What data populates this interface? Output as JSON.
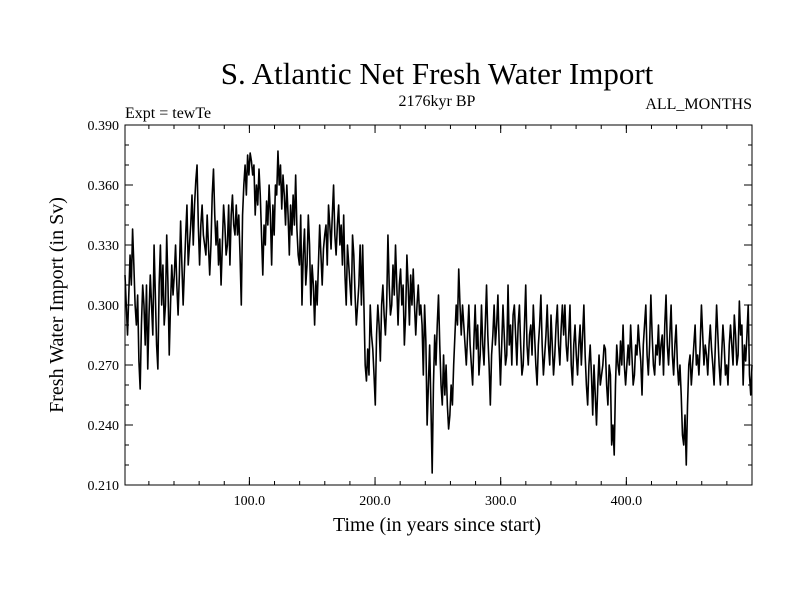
{
  "chart_data": {
    "type": "line",
    "title": "S. Atlantic Net Fresh Water Import",
    "subtitle_left": "Expt = tewTe",
    "subtitle_center": "2176kyr BP",
    "subtitle_right": "ALL_MONTHS",
    "xlabel": "Time (in years since start)",
    "ylabel": "Fresh Water Import (in Sv)",
    "xlim": [
      1,
      500
    ],
    "ylim": [
      0.21,
      0.39
    ],
    "x_ticks": [
      100,
      200,
      300,
      400
    ],
    "x_tick_labels": [
      "100.0",
      "200.0",
      "300.0",
      "400.0"
    ],
    "y_ticks": [
      0.21,
      0.24,
      0.27,
      0.3,
      0.33,
      0.36,
      0.39
    ],
    "y_tick_labels": [
      "0.210",
      "0.240",
      "0.270",
      "0.300",
      "0.330",
      "0.360",
      "0.390"
    ],
    "grid": false,
    "series": [
      {
        "name": "Fresh Water Import",
        "x_start": 1,
        "x_step": 1,
        "values": [
          0.315,
          0.3,
          0.285,
          0.305,
          0.325,
          0.31,
          0.338,
          0.32,
          0.3,
          0.29,
          0.305,
          0.272,
          0.258,
          0.29,
          0.31,
          0.3,
          0.28,
          0.31,
          0.268,
          0.295,
          0.315,
          0.3,
          0.285,
          0.33,
          0.305,
          0.28,
          0.268,
          0.31,
          0.33,
          0.3,
          0.32,
          0.29,
          0.3,
          0.335,
          0.31,
          0.275,
          0.3,
          0.32,
          0.305,
          0.315,
          0.33,
          0.31,
          0.295,
          0.315,
          0.342,
          0.32,
          0.3,
          0.318,
          0.335,
          0.35,
          0.32,
          0.33,
          0.34,
          0.355,
          0.33,
          0.35,
          0.362,
          0.37,
          0.34,
          0.32,
          0.34,
          0.35,
          0.335,
          0.33,
          0.325,
          0.345,
          0.33,
          0.315,
          0.33,
          0.355,
          0.368,
          0.345,
          0.33,
          0.342,
          0.32,
          0.333,
          0.31,
          0.33,
          0.35,
          0.34,
          0.325,
          0.33,
          0.35,
          0.32,
          0.345,
          0.355,
          0.34,
          0.335,
          0.35,
          0.335,
          0.345,
          0.325,
          0.3,
          0.345,
          0.36,
          0.37,
          0.355,
          0.375,
          0.365,
          0.376,
          0.372,
          0.365,
          0.37,
          0.345,
          0.36,
          0.35,
          0.368,
          0.355,
          0.335,
          0.315,
          0.34,
          0.33,
          0.352,
          0.34,
          0.36,
          0.345,
          0.32,
          0.35,
          0.335,
          0.36,
          0.355,
          0.377,
          0.36,
          0.37,
          0.348,
          0.365,
          0.355,
          0.34,
          0.36,
          0.345,
          0.325,
          0.35,
          0.335,
          0.355,
          0.34,
          0.365,
          0.338,
          0.325,
          0.32,
          0.345,
          0.3,
          0.325,
          0.338,
          0.31,
          0.32,
          0.345,
          0.33,
          0.3,
          0.32,
          0.31,
          0.29,
          0.312,
          0.3,
          0.32,
          0.34,
          0.325,
          0.31,
          0.328,
          0.335,
          0.34,
          0.32,
          0.35,
          0.34,
          0.328,
          0.345,
          0.36,
          0.335,
          0.325,
          0.34,
          0.35,
          0.33,
          0.34,
          0.32,
          0.345,
          0.315,
          0.3,
          0.33,
          0.32,
          0.31,
          0.3,
          0.335,
          0.325,
          0.305,
          0.29,
          0.3,
          0.31,
          0.33,
          0.3,
          0.33,
          0.3,
          0.27,
          0.262,
          0.278,
          0.265,
          0.3,
          0.285,
          0.278,
          0.265,
          0.25,
          0.285,
          0.3,
          0.29,
          0.272,
          0.3,
          0.31,
          0.295,
          0.285,
          0.3,
          0.335,
          0.31,
          0.295,
          0.3,
          0.32,
          0.305,
          0.33,
          0.31,
          0.29,
          0.31,
          0.318,
          0.3,
          0.31,
          0.28,
          0.295,
          0.325,
          0.31,
          0.29,
          0.315,
          0.3,
          0.318,
          0.3,
          0.285,
          0.3,
          0.31,
          0.295,
          0.3,
          0.29,
          0.265,
          0.3,
          0.282,
          0.24,
          0.26,
          0.28,
          0.25,
          0.216,
          0.26,
          0.285,
          0.27,
          0.29,
          0.305,
          0.28,
          0.26,
          0.25,
          0.275,
          0.255,
          0.27,
          0.25,
          0.238,
          0.245,
          0.26,
          0.25,
          0.27,
          0.285,
          0.3,
          0.29,
          0.318,
          0.3,
          0.285,
          0.3,
          0.29,
          0.28,
          0.27,
          0.285,
          0.3,
          0.28,
          0.27,
          0.26,
          0.282,
          0.3,
          0.278,
          0.29,
          0.265,
          0.275,
          0.3,
          0.28,
          0.27,
          0.29,
          0.31,
          0.285,
          0.27,
          0.25,
          0.275,
          0.285,
          0.3,
          0.28,
          0.29,
          0.305,
          0.28,
          0.26,
          0.28,
          0.3,
          0.285,
          0.27,
          0.275,
          0.31,
          0.28,
          0.29,
          0.27,
          0.295,
          0.3,
          0.285,
          0.27,
          0.29,
          0.3,
          0.28,
          0.265,
          0.27,
          0.29,
          0.31,
          0.28,
          0.27,
          0.285,
          0.29,
          0.275,
          0.3,
          0.285,
          0.27,
          0.26,
          0.28,
          0.29,
          0.305,
          0.28,
          0.265,
          0.275,
          0.285,
          0.3,
          0.28,
          0.27,
          0.295,
          0.28,
          0.265,
          0.275,
          0.29,
          0.3,
          0.28,
          0.27,
          0.288,
          0.3,
          0.285,
          0.3,
          0.28,
          0.272,
          0.285,
          0.3,
          0.27,
          0.26,
          0.28,
          0.29,
          0.275,
          0.265,
          0.28,
          0.29,
          0.27,
          0.285,
          0.3,
          0.275,
          0.26,
          0.25,
          0.27,
          0.28,
          0.265,
          0.245,
          0.27,
          0.255,
          0.24,
          0.26,
          0.275,
          0.26,
          0.265,
          0.27,
          0.28,
          0.278,
          0.26,
          0.25,
          0.27,
          0.265,
          0.23,
          0.24,
          0.225,
          0.26,
          0.28,
          0.27,
          0.265,
          0.282,
          0.27,
          0.29,
          0.27,
          0.26,
          0.27,
          0.28,
          0.27,
          0.29,
          0.275,
          0.26,
          0.265,
          0.28,
          0.275,
          0.29,
          0.28,
          0.272,
          0.255,
          0.28,
          0.29,
          0.3,
          0.275,
          0.265,
          0.28,
          0.305,
          0.285,
          0.27,
          0.265,
          0.28,
          0.275,
          0.29,
          0.27,
          0.28,
          0.285,
          0.265,
          0.29,
          0.305,
          0.28,
          0.27,
          0.285,
          0.3,
          0.275,
          0.265,
          0.28,
          0.29,
          0.27,
          0.26,
          0.27,
          0.255,
          0.235,
          0.23,
          0.245,
          0.22,
          0.25,
          0.27,
          0.275,
          0.26,
          0.27,
          0.28,
          0.29,
          0.27,
          0.275,
          0.265,
          0.28,
          0.3,
          0.285,
          0.27,
          0.28,
          0.275,
          0.265,
          0.28,
          0.29,
          0.278,
          0.27,
          0.26,
          0.28,
          0.3,
          0.285,
          0.27,
          0.26,
          0.275,
          0.29,
          0.28,
          0.265,
          0.27,
          0.26,
          0.28,
          0.29,
          0.28,
          0.27,
          0.295,
          0.285,
          0.27,
          0.275,
          0.302,
          0.285,
          0.29,
          0.26,
          0.28,
          0.272,
          0.285,
          0.3,
          0.265,
          0.255,
          0.27
        ]
      }
    ]
  }
}
